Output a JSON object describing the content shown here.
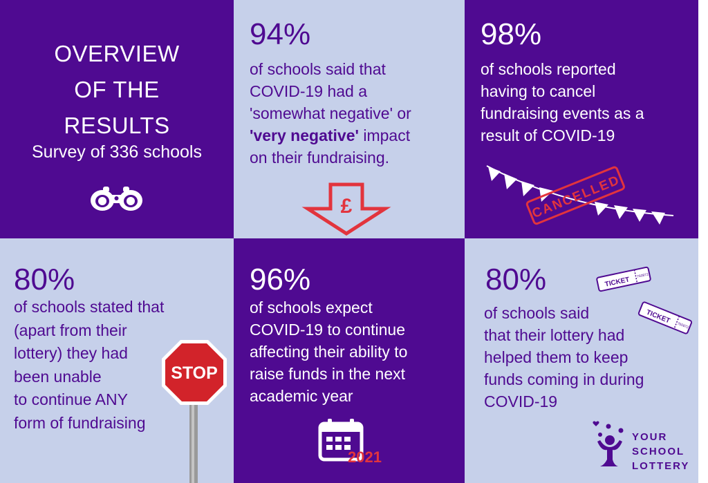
{
  "overview": {
    "title_line1": "OVERVIEW",
    "title_line2": "OF THE",
    "title_line3": "RESULTS",
    "subtitle": "Survey of 336 schools",
    "icon": "binoculars-icon"
  },
  "stat_negative_impact": {
    "percent": "94%",
    "line1": "of schools said that",
    "line2": "COVID-19 had a",
    "line3": "'somewhat negative' or",
    "line4_bold": "'very negative'",
    "line4_rest": " impact",
    "line5": "on their fundraising.",
    "icon": "down-arrow-pound-icon",
    "icon_text": "£"
  },
  "stat_cancelled_events": {
    "percent": "98%",
    "line1": "of schools reported",
    "line2": "having to cancel",
    "line3": "fundraising events as a",
    "line4": "result of COVID-19",
    "stamp": "CANCELLED",
    "icon": "bunting-icon"
  },
  "stat_no_fundraising": {
    "percent": "80%",
    "line1": "of schools stated that",
    "line2": "(apart from their",
    "line3": "lottery) they had",
    "line4": "been unable",
    "line5": "to continue ANY",
    "line6": "form of fundraising",
    "sign_text": "STOP",
    "icon": "stop-sign-icon"
  },
  "stat_expect_continue": {
    "percent": "96%",
    "line1": "of schools expect",
    "line2": "COVID-19 to continue",
    "line3": "affecting their ability to",
    "line4": "raise funds in the next",
    "line5": "academic year",
    "year": "2021",
    "icon": "calendar-icon"
  },
  "stat_lottery_helped": {
    "percent": "80%",
    "line1": "of schools said",
    "line2": "that their lottery had",
    "line3": "helped them to keep",
    "line4": "funds coming in during",
    "line5": "COVID-19",
    "ticket_label": "TICKET",
    "ticket_number_1": "760872",
    "ticket_number_2": "760872",
    "icon": "ticket-icon"
  },
  "brand": {
    "line1": "YOUR",
    "line2": "SCHOOL",
    "line3": "LOTTERY",
    "icon": "your-school-lottery-logo"
  },
  "colors": {
    "dark": "#4f0a91",
    "light": "#c6d0ea",
    "accent_red": "#e2343d",
    "white": "#ffffff"
  }
}
